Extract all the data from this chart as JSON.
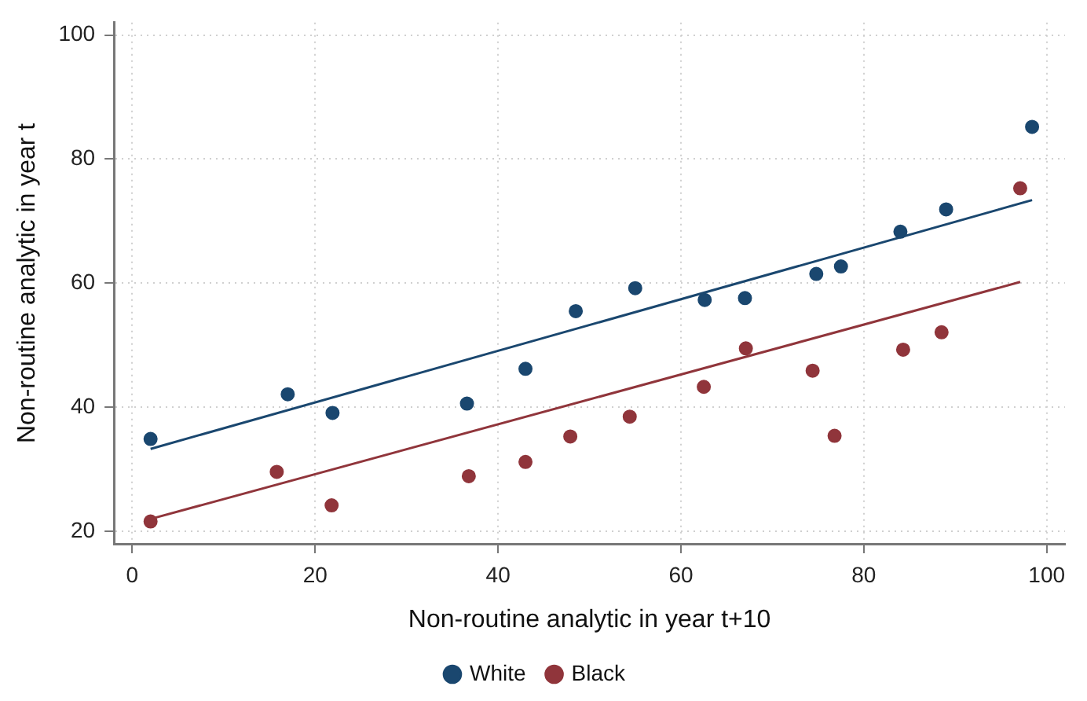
{
  "chart_data": {
    "type": "scatter",
    "xlabel": "Non-routine analytic in year t+10",
    "ylabel": "Non-routine analytic in year t",
    "xlim": [
      -2,
      102
    ],
    "ylim": [
      18,
      102
    ],
    "xticks": [
      0,
      20,
      40,
      60,
      80,
      100
    ],
    "yticks": [
      20,
      40,
      60,
      80,
      100
    ],
    "grid": true,
    "legend": "bottom",
    "series": [
      {
        "name": "White",
        "color": "#1a476f",
        "marker": "circle",
        "x": [
          2.0,
          17.0,
          21.9,
          36.6,
          43.0,
          48.5,
          55.0,
          62.6,
          67.0,
          74.8,
          77.5,
          84.0,
          89.0,
          98.4
        ],
        "values": [
          34.9,
          42.1,
          39.1,
          40.6,
          46.2,
          55.5,
          59.2,
          57.3,
          57.6,
          61.5,
          62.7,
          68.3,
          71.9,
          85.2
        ]
      },
      {
        "name": "Black",
        "color": "#90353b",
        "marker": "circle",
        "x": [
          2.0,
          15.8,
          21.8,
          36.8,
          43.0,
          47.9,
          54.4,
          62.5,
          67.1,
          74.4,
          76.8,
          84.3,
          88.5,
          97.1
        ],
        "values": [
          21.6,
          29.6,
          24.2,
          28.9,
          31.2,
          35.3,
          38.5,
          43.3,
          49.5,
          45.9,
          35.4,
          49.3,
          52.1,
          75.3
        ]
      },
      {
        "type": "line",
        "color": "#1a476f",
        "marker": "none",
        "x": [
          2.0,
          98.4
        ],
        "values": [
          33.3,
          73.4
        ]
      },
      {
        "type": "line",
        "color": "#90353b",
        "marker": "none",
        "x": [
          2.0,
          97.1
        ],
        "values": [
          22.0,
          60.2
        ]
      }
    ]
  }
}
